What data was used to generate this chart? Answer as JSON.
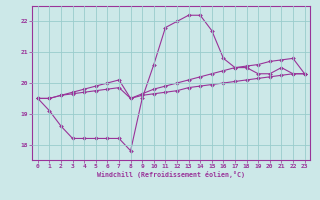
{
  "xlabel": "Windchill (Refroidissement éolien,°C)",
  "xlim": [
    -0.5,
    23.5
  ],
  "ylim": [
    17.5,
    22.5
  ],
  "yticks": [
    18,
    19,
    20,
    21,
    22
  ],
  "xticks": [
    0,
    1,
    2,
    3,
    4,
    5,
    6,
    7,
    8,
    9,
    10,
    11,
    12,
    13,
    14,
    15,
    16,
    17,
    18,
    19,
    20,
    21,
    22,
    23
  ],
  "bg_color": "#cce8e8",
  "line_color": "#993399",
  "grid_color": "#99cccc",
  "line1_x": [
    0,
    1,
    2,
    3,
    4,
    5,
    6,
    7,
    8,
    9,
    10,
    11,
    12,
    13,
    14,
    15,
    16,
    17,
    18,
    19,
    20,
    21,
    22,
    23
  ],
  "line1_y": [
    19.5,
    19.1,
    18.6,
    18.2,
    18.2,
    18.2,
    18.2,
    18.2,
    17.8,
    19.5,
    20.6,
    21.8,
    22.0,
    22.2,
    22.2,
    21.7,
    20.8,
    20.5,
    20.5,
    20.3,
    20.3,
    20.5,
    20.3,
    20.3
  ],
  "line2_x": [
    0,
    1,
    2,
    3,
    4,
    5,
    6,
    7,
    8,
    9,
    10,
    11,
    12,
    13,
    14,
    15,
    16,
    17,
    18,
    19,
    20,
    21,
    22,
    23
  ],
  "line2_y": [
    19.5,
    19.5,
    19.6,
    19.65,
    19.7,
    19.75,
    19.8,
    19.85,
    19.5,
    19.6,
    19.65,
    19.7,
    19.75,
    19.85,
    19.9,
    19.95,
    20.0,
    20.05,
    20.1,
    20.15,
    20.2,
    20.25,
    20.3,
    20.3
  ],
  "line3_x": [
    0,
    1,
    2,
    3,
    4,
    5,
    6,
    7,
    8,
    9,
    10,
    11,
    12,
    13,
    14,
    15,
    16,
    17,
    18,
    19,
    20,
    21,
    22,
    23
  ],
  "line3_y": [
    19.5,
    19.5,
    19.6,
    19.7,
    19.8,
    19.9,
    20.0,
    20.1,
    19.5,
    19.65,
    19.8,
    19.9,
    20.0,
    20.1,
    20.2,
    20.3,
    20.4,
    20.5,
    20.55,
    20.6,
    20.7,
    20.75,
    20.8,
    20.3
  ]
}
